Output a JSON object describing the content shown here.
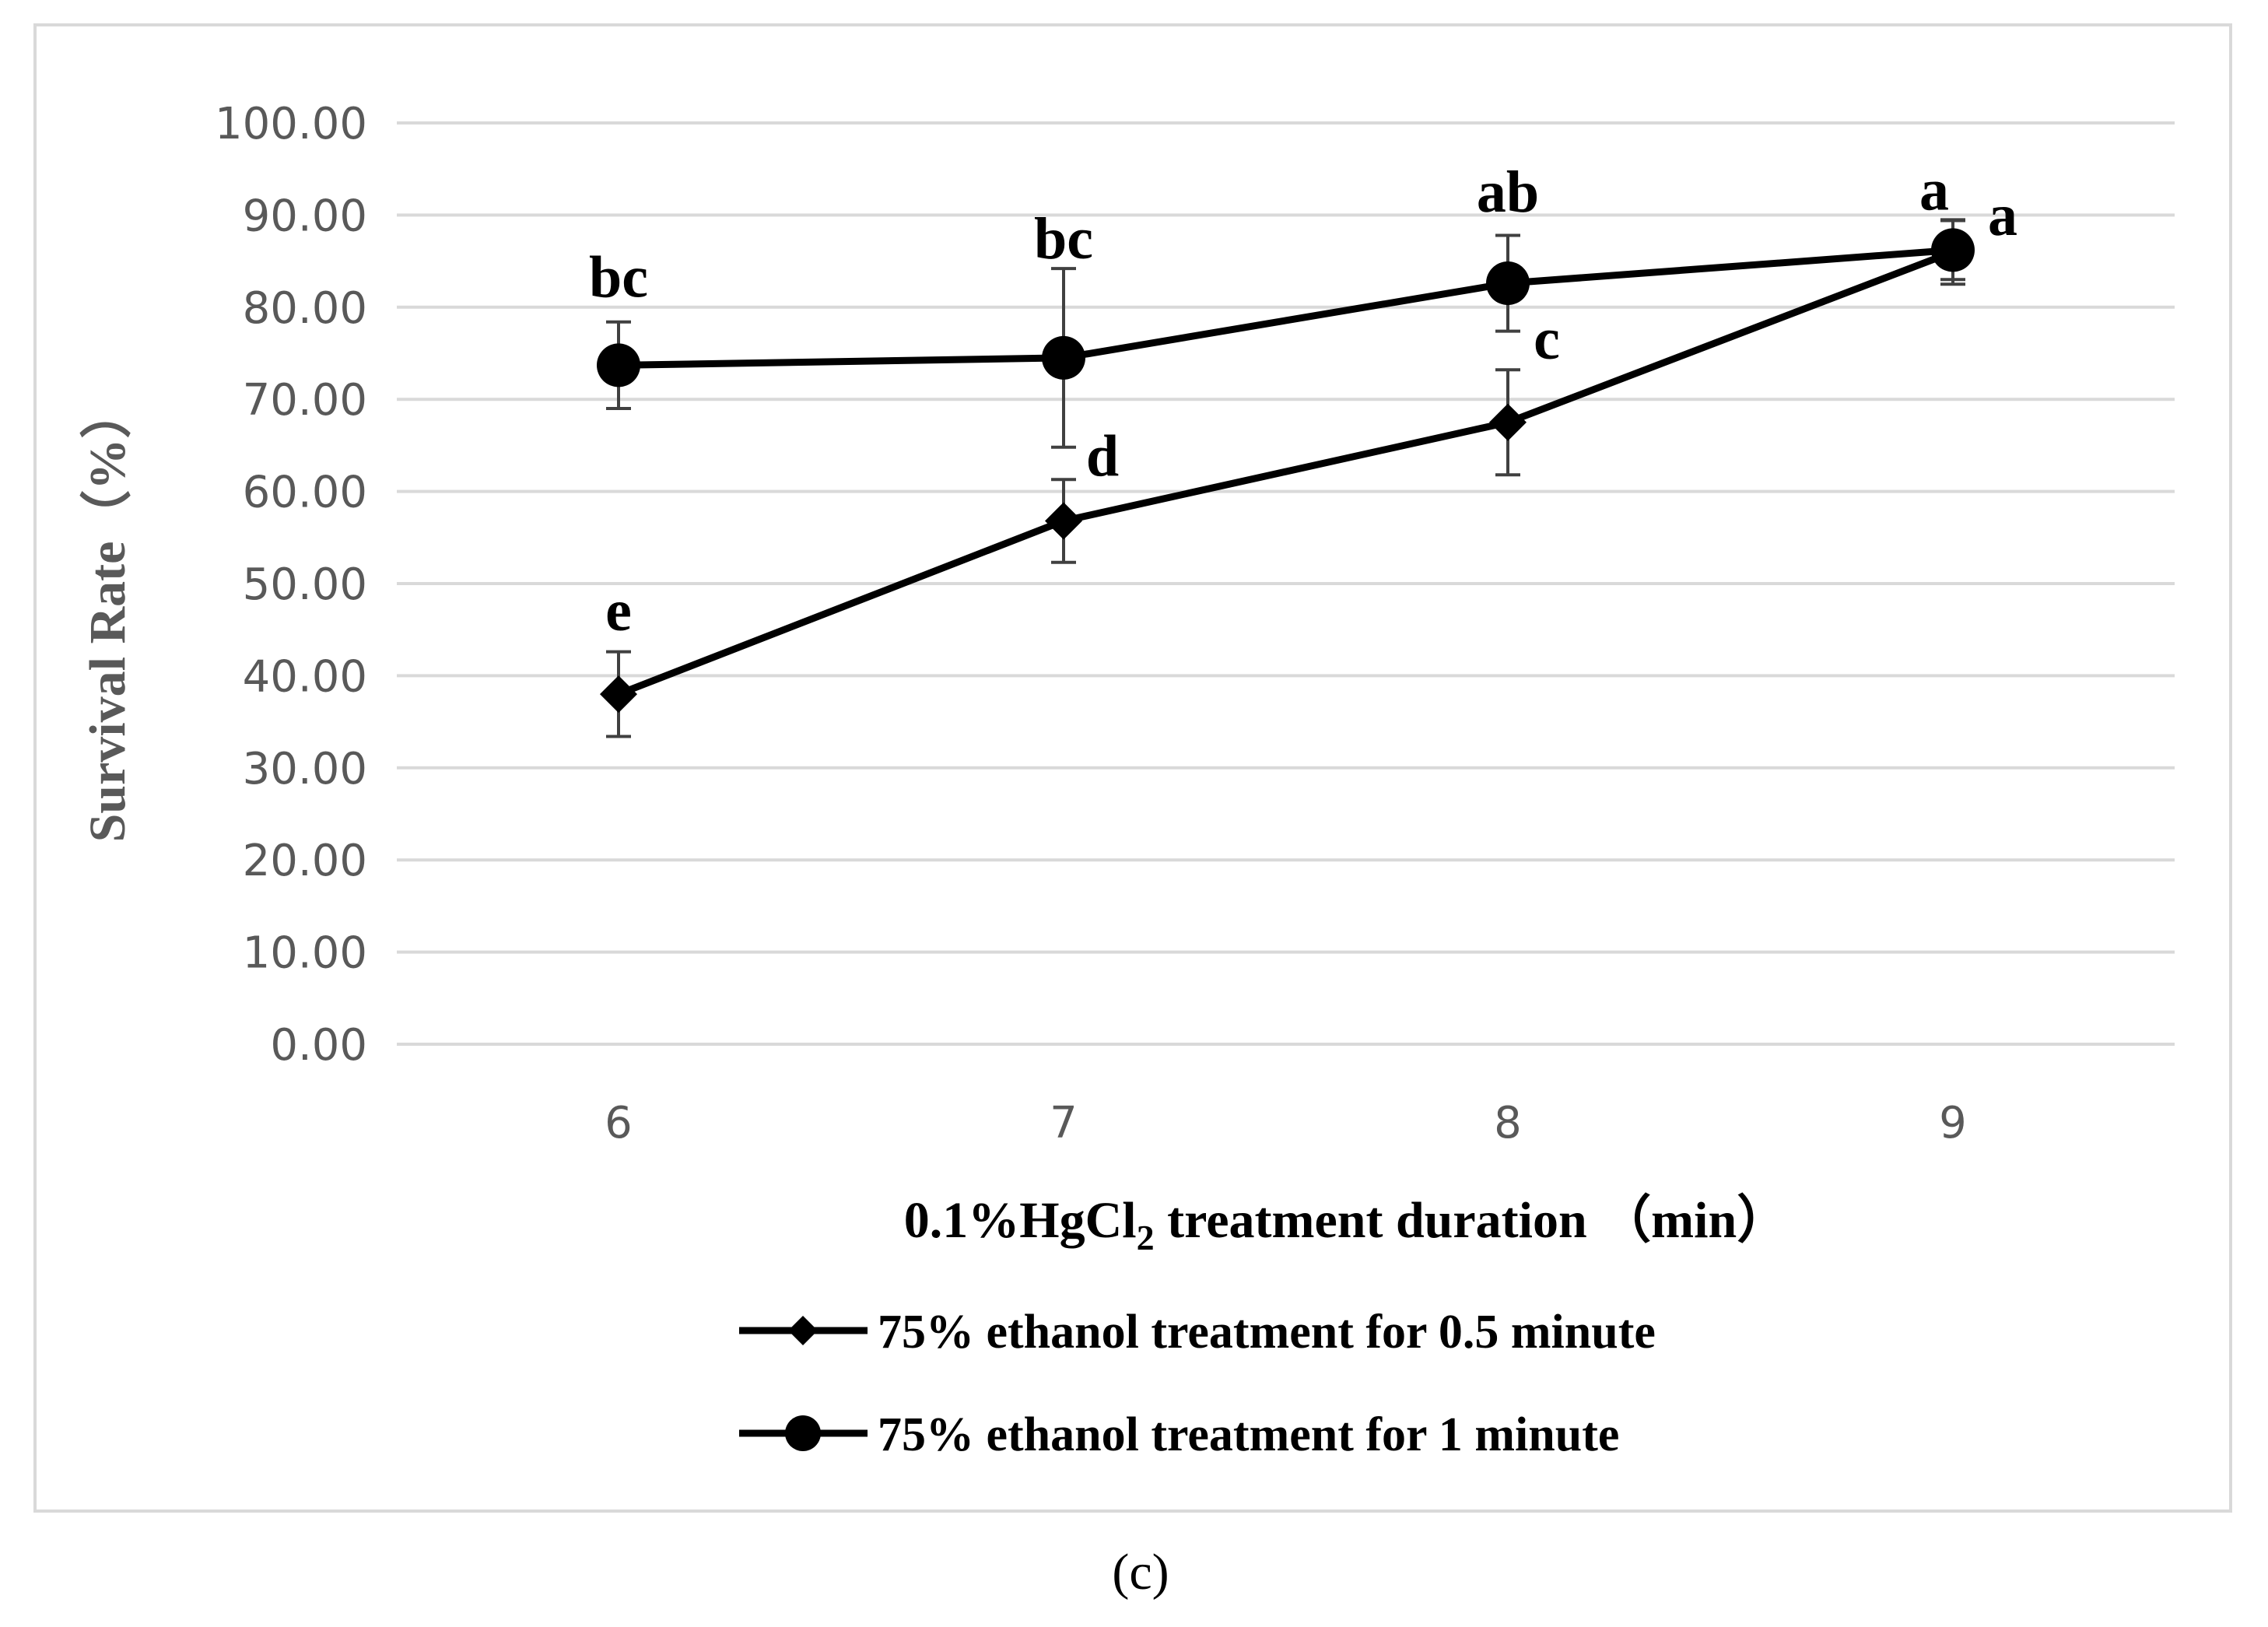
{
  "chart_data": {
    "type": "line",
    "x": [
      6,
      7,
      8,
      9
    ],
    "xlabel_main": "0.1%HgCl",
    "xlabel_sub": "2",
    "xlabel_rest": " treatment duration （min）",
    "ylabel": "Survival Rate（%）",
    "ylim": [
      0,
      100
    ],
    "yticks": [
      0,
      10,
      20,
      30,
      40,
      50,
      60,
      70,
      80,
      90,
      100
    ],
    "ytick_labels": [
      "0.00",
      "10.00",
      "20.00",
      "30.00",
      "40.00",
      "50.00",
      "60.00",
      "70.00",
      "80.00",
      "90.00",
      "100.00"
    ],
    "xtick_labels": [
      "6",
      "7",
      "8",
      "9"
    ],
    "grid": true,
    "legend_position": "bottom",
    "series": [
      {
        "name": "75% ethanol treatment for 0.5 minute",
        "marker": "diamond",
        "values": [
          38.0,
          56.8,
          67.5,
          86.0
        ],
        "errors": [
          4.6,
          4.5,
          5.7,
          3.5
        ],
        "labels": [
          "e",
          "d",
          "c",
          "a"
        ]
      },
      {
        "name": "75% ethanol treatment for 1 minute",
        "marker": "circle",
        "values": [
          73.7,
          74.5,
          82.6,
          86.2
        ],
        "errors": [
          4.7,
          9.7,
          5.2,
          3.2
        ],
        "labels": [
          "bc",
          "bc",
          "ab",
          "a"
        ]
      }
    ]
  },
  "caption": "(c)"
}
